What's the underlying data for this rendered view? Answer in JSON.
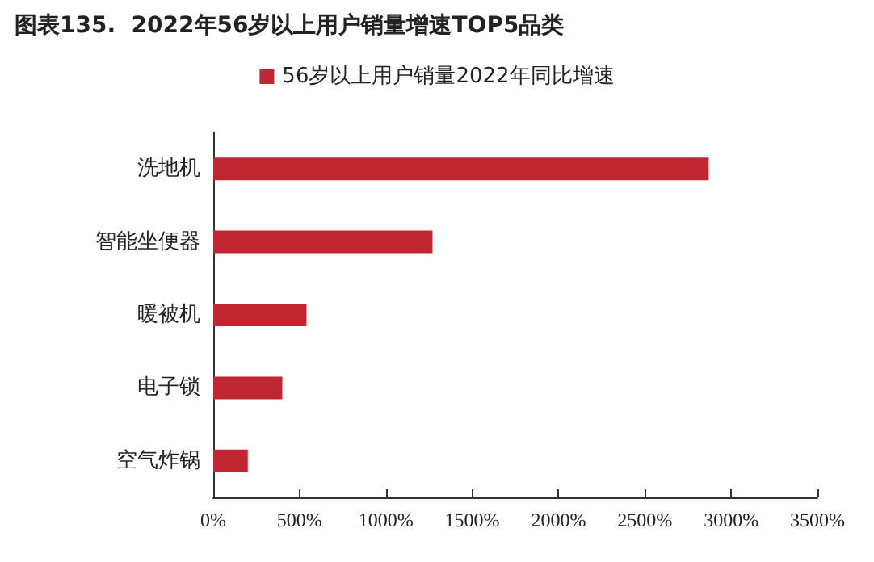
{
  "chart_data": {
    "type": "bar",
    "orientation": "horizontal",
    "title": "图表135.  2022年56岁以上用户销量增速TOP5品类",
    "categories": [
      "洗地机",
      "智能坐便器",
      "暖被机",
      "电子锁",
      "空气炸锅"
    ],
    "series": [
      {
        "name": "56岁以上用户销量2022年同比增速",
        "color": "#c0262f",
        "values": [
          2870,
          1270,
          540,
          400,
          200
        ]
      }
    ],
    "xlim": [
      0,
      3500
    ],
    "xticks": [
      {
        "value": 0,
        "label": "0%"
      },
      {
        "value": 500,
        "label": "500%"
      },
      {
        "value": 1000,
        "label": "1000%"
      },
      {
        "value": 1500,
        "label": "1500%"
      },
      {
        "value": 2000,
        "label": "2000%"
      },
      {
        "value": 2500,
        "label": "2500%"
      },
      {
        "value": 3000,
        "label": "3000%"
      },
      {
        "value": 3500,
        "label": "3500%"
      }
    ],
    "grid": false,
    "legend": "top"
  }
}
